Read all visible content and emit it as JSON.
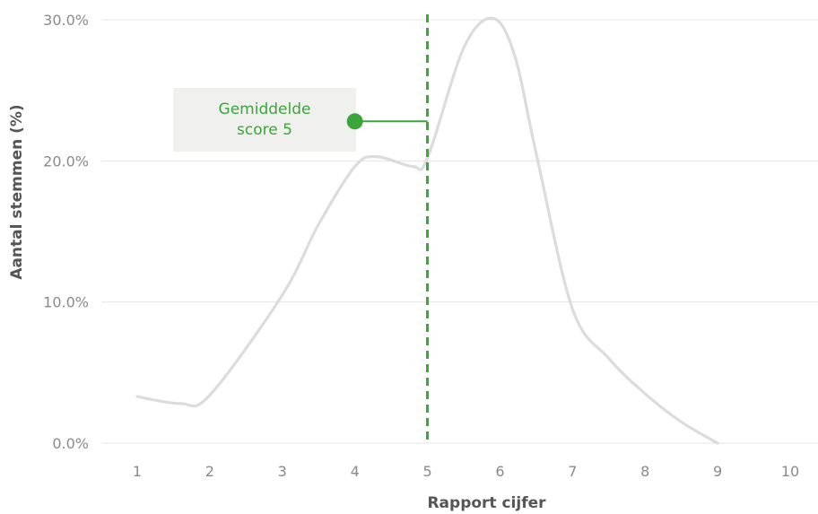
{
  "chart_data": {
    "type": "line",
    "xlabel": "Rapport cijfer",
    "ylabel": "Aantal stemmen (%)",
    "x_ticks": [
      "1",
      "2",
      "3",
      "4",
      "5",
      "6",
      "7",
      "8",
      "9",
      "10"
    ],
    "y_ticks": [
      "0.0%",
      "10.0%",
      "20.0%",
      "30.0%"
    ],
    "xlim": [
      1,
      10
    ],
    "ylim": [
      0,
      30
    ],
    "grid": "horizontal",
    "series": [
      {
        "x": [
          1,
          1.6,
          2,
          3,
          3.5,
          4,
          4.3,
          4.8,
          5,
          5.5,
          5.9,
          6.2,
          6.5,
          7,
          7.5,
          8,
          8.5,
          9
        ],
        "y": [
          3.3,
          2.8,
          3.4,
          10.5,
          15.5,
          19.6,
          20.3,
          19.6,
          20.2,
          28.0,
          30.1,
          27.5,
          20.5,
          9.5,
          6.0,
          3.5,
          1.5,
          0.0
        ]
      }
    ],
    "reference_line": {
      "x": 5,
      "style": "dashed"
    },
    "annotation": {
      "lines": [
        "Gemiddelde",
        "score 5"
      ],
      "point": {
        "x": 4,
        "y": 22.8
      }
    },
    "colors": {
      "curve": "#dcdcdc",
      "accent": "#3aa63a",
      "grid": "#e4e4e4",
      "annotation_bg": "#f0f0ee",
      "text": "#8a8a8a"
    }
  }
}
